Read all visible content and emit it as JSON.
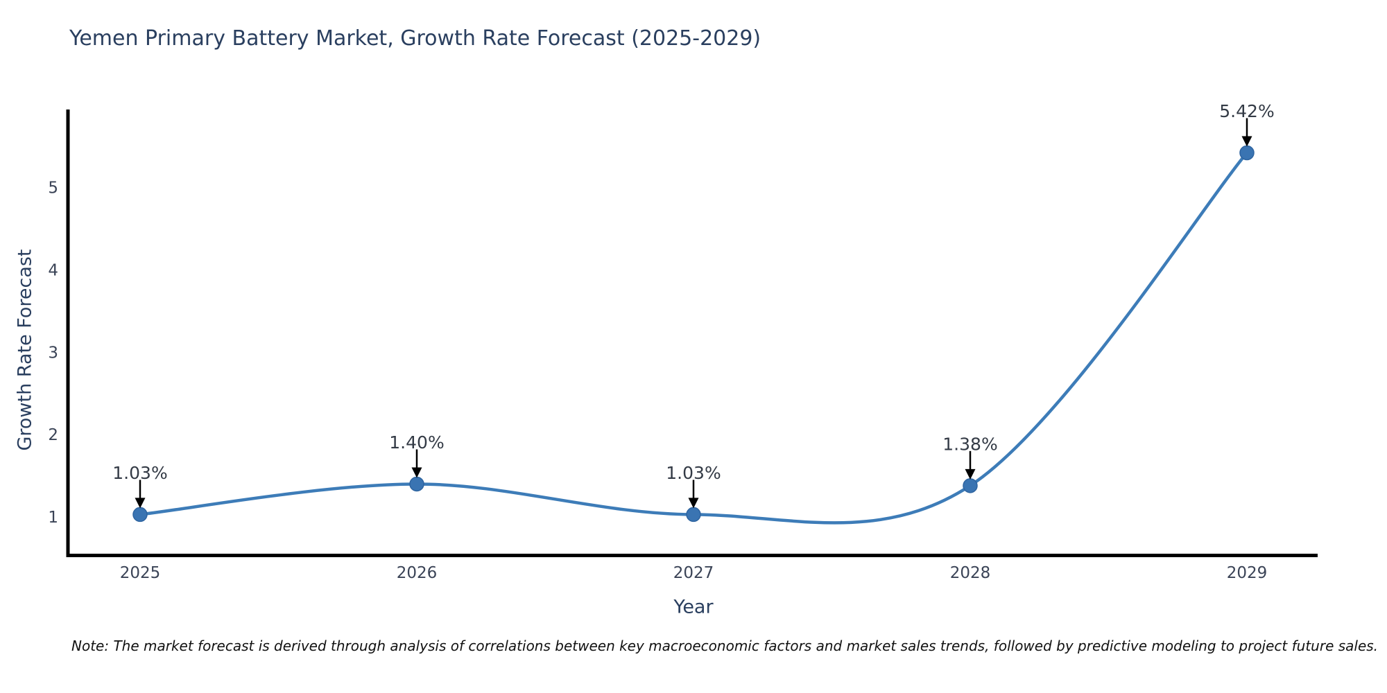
{
  "note": "Note: The market forecast is derived through analysis of correlations between key macroeconomic factors and market sales trends, followed by predictive modeling to project future sales.",
  "chart_data": {
    "type": "line",
    "title": "Yemen Primary Battery Market, Growth Rate Forecast (2025-2029)",
    "xlabel": "Year",
    "ylabel": "Growth Rate Forecast",
    "x": [
      "2025",
      "2026",
      "2027",
      "2028",
      "2029"
    ],
    "values": [
      1.03,
      1.4,
      1.03,
      1.38,
      5.42
    ],
    "point_labels": [
      "1.03%",
      "1.40%",
      "1.03%",
      "1.38%",
      "5.42%"
    ],
    "yticks": [
      1,
      2,
      3,
      4,
      5
    ],
    "ylim": [
      0.51,
      5.95
    ],
    "grid": false,
    "legend": false,
    "line_style": "spline",
    "annotation_style": "arrow-down",
    "colors": {
      "line": "#3d7cb8",
      "marker": "#3a74b2",
      "marker_edge": "#2e64a0",
      "axis": "#000000",
      "arrow": "#000000",
      "title_text": "#2a3f5f",
      "tick_text": "#3a4356",
      "label_text": "#333a45",
      "background": "#ffffff"
    }
  }
}
